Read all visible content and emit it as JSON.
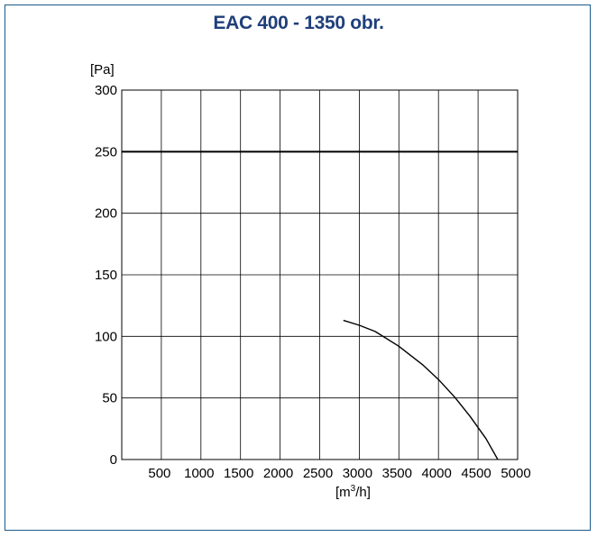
{
  "chart_data": {
    "type": "line",
    "title": "EAC 400 - 1350 obr.",
    "xlabel": "[m³/h]",
    "ylabel": "[Pa]",
    "xlim": [
      0,
      5000
    ],
    "ylim": [
      0,
      300
    ],
    "xticks": [
      500,
      1000,
      1500,
      2000,
      2500,
      3000,
      3500,
      4000,
      4500,
      5000
    ],
    "yticks": [
      0,
      50,
      100,
      150,
      200,
      250,
      300
    ],
    "grid": true,
    "reference_line_y": 250,
    "series": [
      {
        "x": [
          2800,
          3000,
          3200,
          3500,
          3800,
          4000,
          4200,
          4400,
          4600,
          4750
        ],
        "y": [
          113,
          109,
          104,
          92,
          77,
          65,
          51,
          35,
          17,
          0
        ],
        "color": "#000000"
      }
    ]
  }
}
